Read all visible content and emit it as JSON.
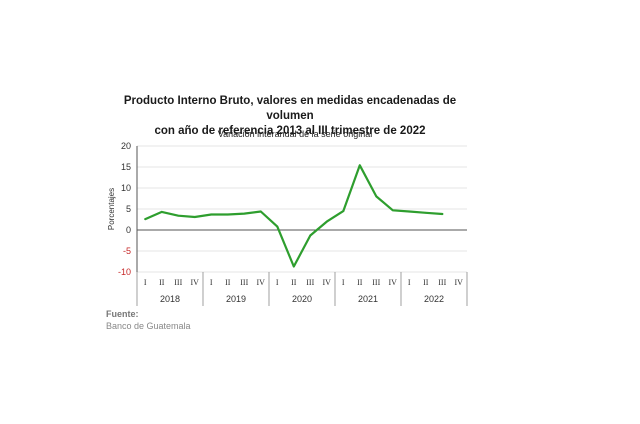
{
  "title_line1": "Producto Interno Bruto, valores en medidas encadenadas de volumen",
  "title_line2": "con año de referencia 2013 al III trimestre de 2022",
  "source_label": "Fuente:",
  "source_value": "Banco de Guatemala",
  "colors": {
    "line": "#2e9e2e",
    "axis": "#555555",
    "grid": "#dddddd",
    "negative_label": "#c62828"
  },
  "chart_data": {
    "type": "line",
    "title": "Producto Interno Bruto, valores en medidas encadenadas de volumen con año de referencia 2013 al III trimestre de 2022",
    "subtitle": "Variación interanual de la serie original",
    "ylabel": "Porcentajes",
    "ylim": [
      -10,
      20
    ],
    "yticks": [
      20,
      15,
      10,
      5,
      0,
      -5,
      -10
    ],
    "grid": true,
    "quarter_labels": [
      "I",
      "II",
      "III",
      "IV"
    ],
    "years": [
      "2018",
      "2019",
      "2020",
      "2021",
      "2022"
    ],
    "x": [
      "2018-I",
      "2018-II",
      "2018-III",
      "2018-IV",
      "2019-I",
      "2019-II",
      "2019-III",
      "2019-IV",
      "2020-I",
      "2020-II",
      "2020-III",
      "2020-IV",
      "2021-I",
      "2021-II",
      "2021-III",
      "2021-IV",
      "2022-I",
      "2022-II",
      "2022-III"
    ],
    "series": [
      {
        "values": [
          2.6,
          4.3,
          3.4,
          3.1,
          3.7,
          3.7,
          3.9,
          4.4,
          0.8,
          -8.7,
          -1.3,
          2.0,
          4.5,
          15.4,
          8.0,
          4.7,
          4.4,
          4.1,
          3.8
        ]
      }
    ]
  }
}
